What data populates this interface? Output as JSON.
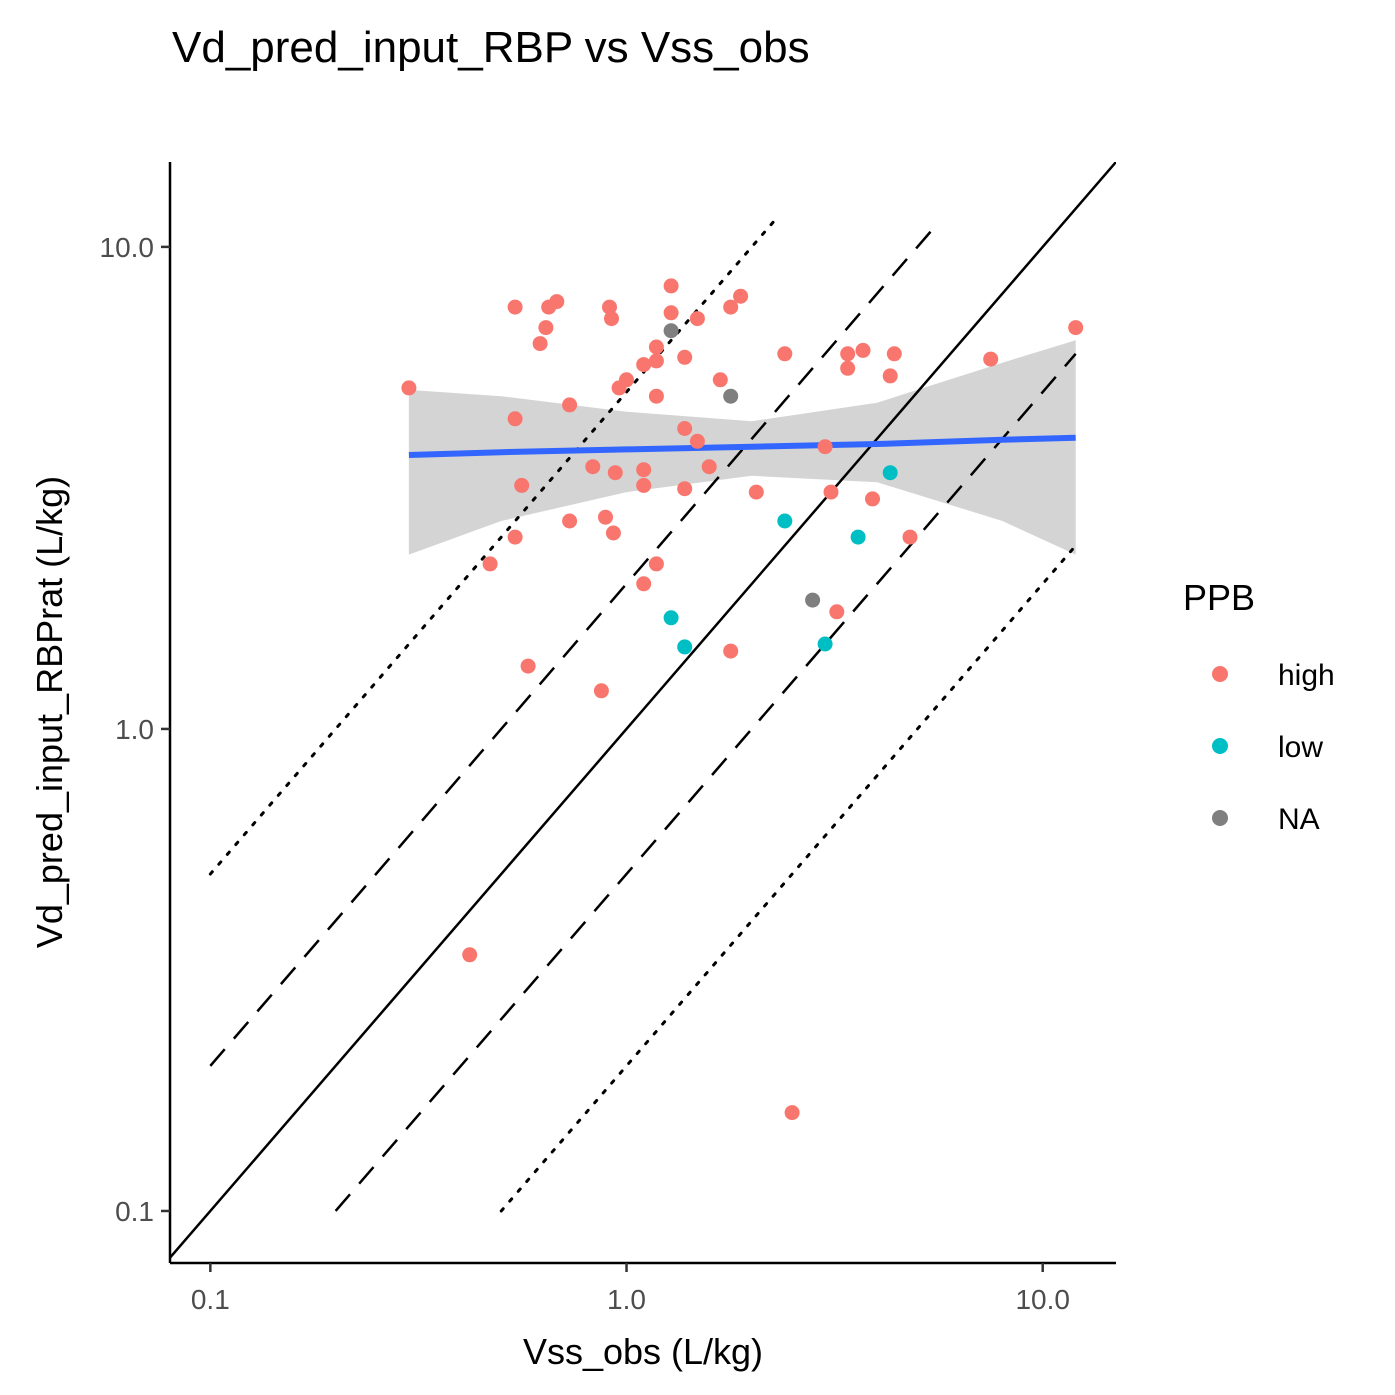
{
  "chart_data": {
    "type": "scatter",
    "title": "Vd_pred_input_RBP vs Vss_obs",
    "xlabel": "Vss_obs (L/kg)",
    "ylabel": "Vd_pred_input_RBPrat (L/kg)",
    "x_scale": "log10",
    "y_scale": "log10",
    "xlim": [
      0.08,
      15
    ],
    "ylim": [
      0.078,
      15
    ],
    "x_ticks": [
      0.1,
      1.0,
      10.0
    ],
    "x_tick_labels": [
      "0.1",
      "1.0",
      "10.0"
    ],
    "y_ticks": [
      0.1,
      1.0,
      10.0
    ],
    "y_tick_labels": [
      "0.1",
      "1.0",
      "10.0"
    ],
    "grid": false,
    "legend": {
      "title": "PPB",
      "position": "right",
      "entries": [
        {
          "label": "high",
          "color": "#F8766D"
        },
        {
          "label": "low",
          "color": "#00BFC4"
        },
        {
          "label": "NA",
          "color": "#7F7F7F"
        }
      ]
    },
    "reference_lines": [
      {
        "kind": "identity",
        "style": "solid",
        "factor": 1,
        "x_range": [
          0.08,
          15
        ]
      },
      {
        "kind": "2-fold upper",
        "style": "dashed",
        "factor": 2,
        "x_range": [
          0.1,
          5.5
        ]
      },
      {
        "kind": "2-fold lower",
        "style": "dashed",
        "factor": 0.5,
        "x_range": [
          0.2,
          12
        ]
      },
      {
        "kind": "5-fold upper",
        "style": "dotted",
        "factor": 5,
        "x_range": [
          0.1,
          2.3
        ]
      },
      {
        "kind": "5-fold lower",
        "style": "dotted",
        "factor": 0.2,
        "x_range": [
          0.5,
          12
        ]
      }
    ],
    "fit": {
      "method": "linear (log-log)",
      "color": "#3366FF",
      "x": [
        0.3,
        0.5,
        1.0,
        2.0,
        4.0,
        8.0,
        12.0
      ],
      "y": [
        3.7,
        3.75,
        3.8,
        3.85,
        3.9,
        3.98,
        4.02
      ],
      "ci_lower": [
        2.3,
        2.7,
        3.1,
        3.35,
        3.25,
        2.7,
        2.3
      ],
      "ci_upper": [
        5.05,
        4.9,
        4.55,
        4.35,
        4.75,
        5.75,
        6.4
      ]
    },
    "series": [
      {
        "name": "high",
        "color": "#F8766D",
        "points": [
          [
            0.3,
            5.1
          ],
          [
            0.42,
            0.34
          ],
          [
            0.47,
            2.2
          ],
          [
            0.54,
            7.5
          ],
          [
            0.54,
            4.4
          ],
          [
            0.54,
            2.5
          ],
          [
            0.56,
            3.2
          ],
          [
            0.58,
            1.35
          ],
          [
            0.62,
            6.3
          ],
          [
            0.64,
            6.8
          ],
          [
            0.65,
            7.5
          ],
          [
            0.68,
            7.7
          ],
          [
            0.73,
            4.7
          ],
          [
            0.73,
            2.7
          ],
          [
            0.83,
            3.5
          ],
          [
            0.87,
            1.2
          ],
          [
            0.89,
            2.75
          ],
          [
            0.91,
            7.5
          ],
          [
            0.92,
            7.1
          ],
          [
            0.93,
            2.55
          ],
          [
            0.94,
            3.4
          ],
          [
            0.96,
            5.1
          ],
          [
            1.0,
            5.3
          ],
          [
            1.1,
            5.7
          ],
          [
            1.1,
            3.45
          ],
          [
            1.1,
            3.2
          ],
          [
            1.1,
            2.0
          ],
          [
            1.18,
            6.2
          ],
          [
            1.18,
            5.8
          ],
          [
            1.18,
            4.9
          ],
          [
            1.18,
            2.2
          ],
          [
            1.28,
            8.3
          ],
          [
            1.28,
            7.3
          ],
          [
            1.38,
            5.9
          ],
          [
            1.38,
            4.2
          ],
          [
            1.38,
            3.15
          ],
          [
            1.48,
            7.1
          ],
          [
            1.48,
            3.95
          ],
          [
            1.58,
            3.5
          ],
          [
            1.68,
            5.3
          ],
          [
            1.78,
            7.5
          ],
          [
            1.78,
            1.45
          ],
          [
            1.88,
            7.9
          ],
          [
            2.05,
            3.1
          ],
          [
            2.4,
            6.0
          ],
          [
            2.5,
            0.16
          ],
          [
            3.0,
            3.85
          ],
          [
            3.1,
            3.1
          ],
          [
            3.2,
            1.75
          ],
          [
            3.4,
            6.0
          ],
          [
            3.4,
            5.6
          ],
          [
            3.7,
            6.1
          ],
          [
            3.9,
            3.0
          ],
          [
            4.3,
            5.4
          ],
          [
            4.4,
            6.0
          ],
          [
            4.8,
            2.5
          ],
          [
            7.5,
            5.85
          ],
          [
            12.0,
            6.8
          ]
        ]
      },
      {
        "name": "low",
        "color": "#00BFC4",
        "points": [
          [
            1.28,
            1.7
          ],
          [
            1.38,
            1.48
          ],
          [
            2.4,
            2.7
          ],
          [
            3.0,
            1.5
          ],
          [
            3.6,
            2.5
          ],
          [
            4.3,
            3.4
          ]
        ]
      },
      {
        "name": "NA",
        "color": "#7F7F7F",
        "points": [
          [
            1.28,
            6.7
          ],
          [
            1.78,
            4.9
          ],
          [
            2.8,
            1.85
          ]
        ]
      }
    ]
  }
}
